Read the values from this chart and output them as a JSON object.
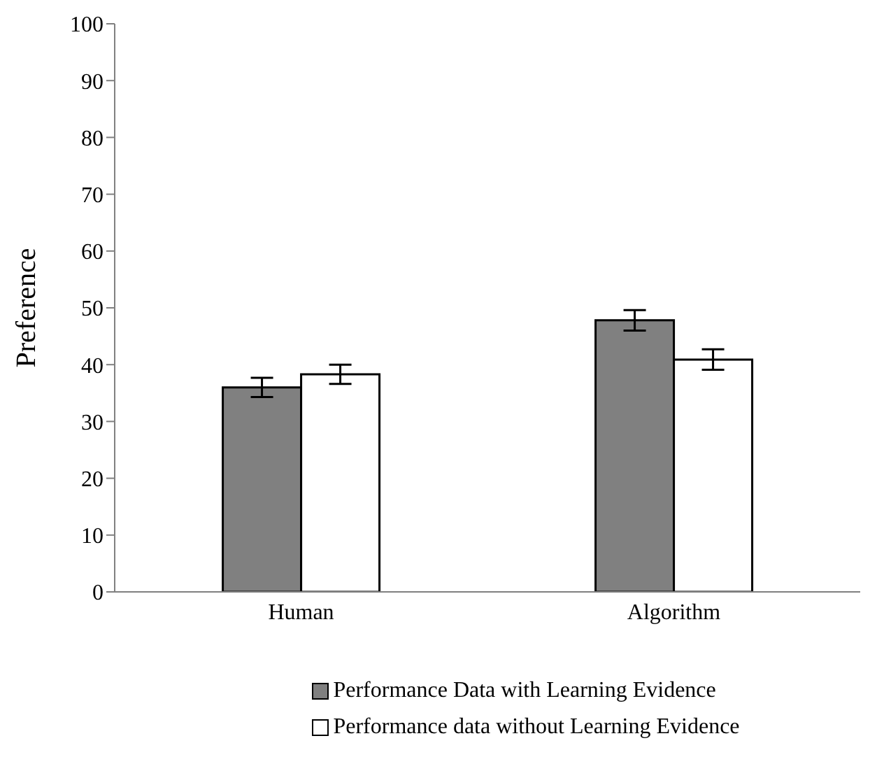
{
  "chart_data": {
    "type": "bar",
    "ylabel": "Preference",
    "categories": [
      "Human",
      "Algorithm"
    ],
    "series": [
      {
        "name": "Performance Data with Learning Evidence",
        "color": "#808080",
        "values": [
          36,
          47.8
        ],
        "errors": [
          1.7,
          1.8
        ]
      },
      {
        "name": "Performance data without Learning Evidence",
        "color": "#ffffff",
        "values": [
          38.3,
          40.9
        ],
        "errors": [
          1.7,
          1.8
        ]
      }
    ],
    "ylim": [
      0,
      100
    ],
    "yticks": [
      0,
      10,
      20,
      30,
      40,
      50,
      60,
      70,
      80,
      90,
      100
    ],
    "grid": false,
    "legend": "bottom"
  }
}
